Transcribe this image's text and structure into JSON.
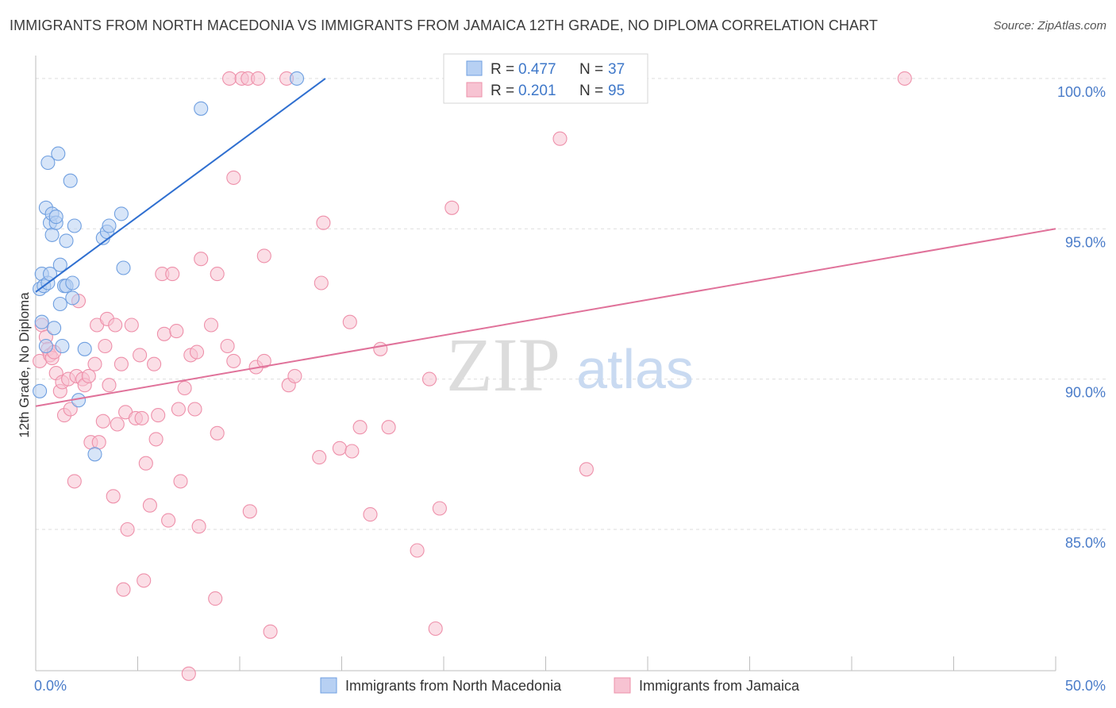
{
  "header": {
    "title": "IMMIGRANTS FROM NORTH MACEDONIA VS IMMIGRANTS FROM JAMAICA 12TH GRADE, NO DIPLOMA CORRELATION CHART",
    "source": "Source: ZipAtlas.com"
  },
  "watermark": {
    "zip": "ZIP",
    "atlas": "atlas"
  },
  "chart_data": {
    "type": "scatter",
    "xlabel": "",
    "ylabel": "12th Grade, No Diploma",
    "xlim": [
      0,
      50
    ],
    "ylim": [
      80.3,
      100.5
    ],
    "x_tick_labels": [
      "0.0%",
      "50.0%"
    ],
    "y_ticks": [
      {
        "value": 100,
        "label": "100.0%"
      },
      {
        "value": 95,
        "label": "95.0%"
      },
      {
        "value": 90,
        "label": "90.0%"
      },
      {
        "value": 85,
        "label": "85.0%"
      }
    ],
    "grid": true,
    "legend_position": "top-center",
    "series": [
      {
        "name": "Immigrants from North Macedonia",
        "color": "#6f9fe0",
        "fill": "#b7d0f3",
        "line_color": "#2f6fd0",
        "R": "0.477",
        "N": "37",
        "trend": {
          "x0": 0.0,
          "y0": 92.9,
          "x1": 14.2,
          "y1": 100.0
        },
        "points": [
          [
            0.2,
            89.6
          ],
          [
            0.3,
            91.9
          ],
          [
            0.2,
            93.0
          ],
          [
            0.3,
            93.5
          ],
          [
            0.4,
            93.1
          ],
          [
            0.5,
            91.1
          ],
          [
            0.5,
            95.7
          ],
          [
            0.6,
            93.2
          ],
          [
            0.7,
            93.5
          ],
          [
            0.6,
            97.2
          ],
          [
            0.7,
            95.2
          ],
          [
            0.8,
            95.5
          ],
          [
            0.8,
            94.8
          ],
          [
            0.9,
            91.7
          ],
          [
            1.0,
            95.2
          ],
          [
            1.0,
            95.4
          ],
          [
            1.1,
            97.5
          ],
          [
            1.2,
            93.8
          ],
          [
            1.2,
            92.5
          ],
          [
            1.3,
            91.1
          ],
          [
            1.4,
            93.1
          ],
          [
            1.5,
            93.1
          ],
          [
            1.5,
            94.6
          ],
          [
            1.7,
            96.6
          ],
          [
            1.8,
            92.7
          ],
          [
            1.8,
            93.2
          ],
          [
            1.9,
            95.1
          ],
          [
            2.1,
            89.3
          ],
          [
            2.4,
            91.0
          ],
          [
            2.9,
            87.5
          ],
          [
            3.3,
            94.7
          ],
          [
            3.5,
            94.9
          ],
          [
            3.6,
            95.1
          ],
          [
            4.2,
            95.5
          ],
          [
            4.3,
            93.7
          ],
          [
            8.1,
            99.0
          ],
          [
            12.8,
            100.0
          ]
        ]
      },
      {
        "name": "Immigrants from Jamaica",
        "color": "#ee90aa",
        "fill": "#f7c3d2",
        "line_color": "#e0729a",
        "R": "0.201",
        "N": "95",
        "trend": {
          "x0": 0.0,
          "y0": 89.1,
          "x1": 50.0,
          "y1": 95.0
        },
        "points": [
          [
            0.2,
            90.6
          ],
          [
            0.3,
            91.8
          ],
          [
            0.5,
            91.4
          ],
          [
            0.6,
            91.0
          ],
          [
            0.7,
            90.8
          ],
          [
            0.8,
            90.7
          ],
          [
            0.9,
            90.9
          ],
          [
            1.0,
            90.2
          ],
          [
            1.2,
            89.6
          ],
          [
            1.3,
            89.9
          ],
          [
            1.4,
            88.8
          ],
          [
            1.6,
            90.0
          ],
          [
            1.7,
            89.0
          ],
          [
            1.9,
            86.6
          ],
          [
            2.0,
            90.1
          ],
          [
            2.1,
            92.6
          ],
          [
            2.3,
            90.0
          ],
          [
            2.4,
            89.8
          ],
          [
            2.6,
            90.1
          ],
          [
            2.7,
            87.9
          ],
          [
            2.9,
            90.5
          ],
          [
            3.0,
            91.8
          ],
          [
            3.1,
            87.9
          ],
          [
            3.3,
            88.6
          ],
          [
            3.4,
            91.1
          ],
          [
            3.5,
            92.0
          ],
          [
            3.6,
            89.8
          ],
          [
            3.8,
            86.1
          ],
          [
            3.9,
            91.8
          ],
          [
            4.0,
            88.5
          ],
          [
            4.2,
            90.5
          ],
          [
            4.3,
            83.0
          ],
          [
            4.4,
            88.9
          ],
          [
            4.5,
            85.0
          ],
          [
            4.7,
            91.8
          ],
          [
            4.9,
            88.7
          ],
          [
            5.1,
            90.8
          ],
          [
            5.2,
            88.7
          ],
          [
            5.3,
            83.3
          ],
          [
            5.4,
            87.2
          ],
          [
            5.6,
            85.8
          ],
          [
            5.8,
            90.5
          ],
          [
            5.9,
            88.0
          ],
          [
            6.0,
            88.8
          ],
          [
            6.2,
            93.5
          ],
          [
            6.3,
            91.5
          ],
          [
            6.5,
            85.3
          ],
          [
            6.7,
            93.5
          ],
          [
            6.9,
            91.6
          ],
          [
            7.0,
            89.0
          ],
          [
            7.1,
            86.6
          ],
          [
            7.3,
            89.7
          ],
          [
            7.5,
            80.2
          ],
          [
            7.6,
            90.8
          ],
          [
            7.8,
            89.0
          ],
          [
            7.9,
            90.9
          ],
          [
            8.0,
            85.1
          ],
          [
            8.1,
            94.0
          ],
          [
            8.6,
            91.8
          ],
          [
            8.8,
            82.7
          ],
          [
            8.9,
            88.2
          ],
          [
            8.9,
            93.5
          ],
          [
            9.4,
            91.1
          ],
          [
            9.5,
            100.0
          ],
          [
            9.7,
            90.6
          ],
          [
            9.7,
            96.7
          ],
          [
            10.1,
            100.0
          ],
          [
            10.4,
            100.0
          ],
          [
            10.5,
            85.6
          ],
          [
            10.8,
            90.4
          ],
          [
            10.9,
            100.0
          ],
          [
            11.2,
            90.6
          ],
          [
            11.2,
            94.1
          ],
          [
            11.5,
            81.6
          ],
          [
            12.3,
            100.0
          ],
          [
            12.4,
            89.8
          ],
          [
            12.7,
            90.1
          ],
          [
            13.9,
            87.4
          ],
          [
            14.0,
            93.2
          ],
          [
            14.1,
            95.2
          ],
          [
            14.9,
            87.7
          ],
          [
            15.4,
            91.9
          ],
          [
            15.5,
            87.6
          ],
          [
            15.9,
            88.4
          ],
          [
            16.4,
            85.5
          ],
          [
            16.9,
            91.0
          ],
          [
            17.3,
            88.4
          ],
          [
            18.7,
            84.3
          ],
          [
            19.3,
            90.0
          ],
          [
            19.6,
            81.7
          ],
          [
            19.8,
            85.7
          ],
          [
            20.4,
            95.7
          ],
          [
            25.7,
            98.0
          ],
          [
            27.0,
            87.0
          ],
          [
            42.6,
            100.0
          ]
        ]
      }
    ]
  }
}
